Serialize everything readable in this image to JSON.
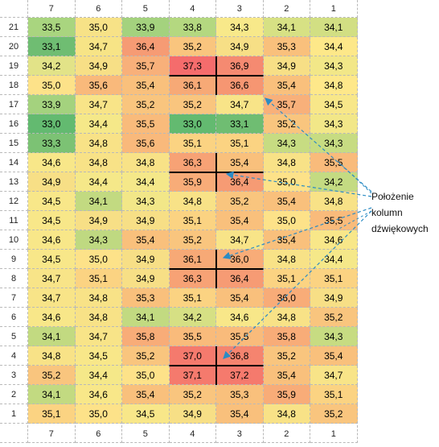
{
  "columns": [
    "7",
    "6",
    "5",
    "4",
    "3",
    "2",
    "1"
  ],
  "rows": [
    {
      "label": "21",
      "values": [
        "33,5",
        "35,0",
        "33,9",
        "33,8",
        "34,3",
        "34,1",
        "34,1"
      ],
      "colors": [
        "#a9d57f",
        "#f7e287",
        "#a4d27e",
        "#b4d880",
        "#f8e98a",
        "#d7e184",
        "#d2df83"
      ]
    },
    {
      "label": "20",
      "values": [
        "33,1",
        "34,7",
        "36,4",
        "35,2",
        "34,9",
        "35,3",
        "34,4"
      ],
      "colors": [
        "#6fbd72",
        "#f7e486",
        "#f69b74",
        "#f9c57e",
        "#f7df86",
        "#f9c07c",
        "#fde889"
      ]
    },
    {
      "label": "19",
      "values": [
        "34,2",
        "34,9",
        "35,7",
        "37,3",
        "36,9",
        "34,9",
        "34,3"
      ],
      "colors": [
        "#e2e388",
        "#f7df86",
        "#f8b07a",
        "#f56c6c",
        "#f58a71",
        "#f7df86",
        "#f2e788"
      ]
    },
    {
      "label": "18",
      "values": [
        "35,0",
        "35,6",
        "35,4",
        "36,1",
        "36,6",
        "35,4",
        "34,8"
      ],
      "colors": [
        "#fde289",
        "#f9b97b",
        "#f9c07c",
        "#f7a976",
        "#f69672",
        "#f9c07c",
        "#fee88a"
      ]
    },
    {
      "label": "17",
      "values": [
        "33,9",
        "34,7",
        "35,2",
        "35,2",
        "34,7",
        "35,7",
        "34,5"
      ],
      "colors": [
        "#a4d27e",
        "#f8e488",
        "#f9c57e",
        "#f9c57e",
        "#f8e488",
        "#f8b07a",
        "#f8e789"
      ]
    },
    {
      "label": "16",
      "values": [
        "33,0",
        "34,4",
        "35,5",
        "33,0",
        "33,1",
        "35,2",
        "34,3"
      ],
      "colors": [
        "#63ba70",
        "#f5e889",
        "#f9bb7b",
        "#63ba70",
        "#6fbd72",
        "#f9c57e",
        "#f2e788"
      ]
    },
    {
      "label": "15",
      "values": [
        "33,3",
        "34,8",
        "35,6",
        "35,1",
        "35,1",
        "34,3",
        "34,3"
      ],
      "colors": [
        "#7cc274",
        "#f8e287",
        "#f9b97b",
        "#fbd382",
        "#fbd382",
        "#c7dc82",
        "#c7dc82"
      ]
    },
    {
      "label": "14",
      "values": [
        "34,6",
        "34,8",
        "34,8",
        "36,3",
        "35,4",
        "34,8",
        "35,5"
      ],
      "colors": [
        "#f8e789",
        "#f8e287",
        "#f8e287",
        "#f7a275",
        "#f9c07c",
        "#f8e287",
        "#f9bb7b"
      ]
    },
    {
      "label": "13",
      "values": [
        "34,9",
        "34,4",
        "34,4",
        "35,9",
        "36,4",
        "35,0",
        "34,2"
      ],
      "colors": [
        "#f7df86",
        "#f5e889",
        "#f5e889",
        "#f8ac78",
        "#f69b74",
        "#fde289",
        "#c4db82"
      ]
    },
    {
      "label": "12",
      "values": [
        "34,5",
        "34,1",
        "34,3",
        "34,8",
        "35,2",
        "35,4",
        "34,8"
      ],
      "colors": [
        "#f8e789",
        "#c2da81",
        "#f2e788",
        "#f8e287",
        "#f9c57e",
        "#f9c07c",
        "#f8e287"
      ]
    },
    {
      "label": "11",
      "values": [
        "34,5",
        "34,9",
        "34,9",
        "35,1",
        "35,4",
        "35,0",
        "35,5"
      ],
      "colors": [
        "#f8e789",
        "#f7df86",
        "#f7df86",
        "#fbd382",
        "#f9c07c",
        "#fde289",
        "#f9bb7b"
      ]
    },
    {
      "label": "10",
      "values": [
        "34,6",
        "34,3",
        "35,4",
        "35,2",
        "34,7",
        "35,4",
        "34,6"
      ],
      "colors": [
        "#f8e789",
        "#bfd981",
        "#f9c07c",
        "#f9c57e",
        "#f8e488",
        "#f9c07c",
        "#f8e789"
      ]
    },
    {
      "label": "9",
      "values": [
        "34,5",
        "35,0",
        "34,9",
        "36,1",
        "36,0",
        "34,8",
        "34,4"
      ],
      "colors": [
        "#f8e789",
        "#fde289",
        "#f7df86",
        "#f7a976",
        "#f8ac78",
        "#f8e287",
        "#f5e889"
      ]
    },
    {
      "label": "8",
      "values": [
        "34,7",
        "35,1",
        "34,9",
        "36,3",
        "36,4",
        "35,1",
        "35,1"
      ],
      "colors": [
        "#f8e488",
        "#fbd382",
        "#f7df86",
        "#f7a275",
        "#f69b74",
        "#fbd382",
        "#fbd382"
      ]
    },
    {
      "label": "7",
      "values": [
        "34,7",
        "34,8",
        "35,3",
        "35,1",
        "35,4",
        "36,0",
        "34,9"
      ],
      "colors": [
        "#f8e488",
        "#f8e287",
        "#f9c07c",
        "#fbd382",
        "#f9c07c",
        "#f8ac78",
        "#f7df86"
      ]
    },
    {
      "label": "6",
      "values": [
        "34,6",
        "34,8",
        "34,1",
        "34,2",
        "34,6",
        "34,8",
        "35,2"
      ],
      "colors": [
        "#f8e789",
        "#f8e287",
        "#c2da81",
        "#d6e084",
        "#f8e789",
        "#f8e287",
        "#f9c57e"
      ]
    },
    {
      "label": "5",
      "values": [
        "34,1",
        "34,7",
        "35,8",
        "35,5",
        "35,5",
        "35,8",
        "34,3"
      ],
      "colors": [
        "#c2da81",
        "#f8e488",
        "#f8ac78",
        "#f9bb7b",
        "#f9bb7b",
        "#f8ac78",
        "#c7dc82"
      ]
    },
    {
      "label": "4",
      "values": [
        "34,8",
        "34,5",
        "35,2",
        "37,0",
        "36,8",
        "35,2",
        "35,4"
      ],
      "colors": [
        "#f8e287",
        "#f8e789",
        "#f9c57e",
        "#f57a6d",
        "#f5846f",
        "#f9c57e",
        "#f9c07c"
      ]
    },
    {
      "label": "3",
      "values": [
        "35,2",
        "34,4",
        "35,0",
        "37,1",
        "37,2",
        "35,4",
        "34,7"
      ],
      "colors": [
        "#f9c57e",
        "#f5e889",
        "#fde289",
        "#f57a6d",
        "#f57a6d",
        "#f9c07c",
        "#f8e488"
      ]
    },
    {
      "label": "2",
      "values": [
        "34,1",
        "34,6",
        "35,4",
        "35,2",
        "35,3",
        "35,9",
        "35,1"
      ],
      "colors": [
        "#c2da81",
        "#f8e789",
        "#f9c07c",
        "#f9c57e",
        "#f9c07c",
        "#f8ac78",
        "#fbd382"
      ]
    },
    {
      "label": "1",
      "values": [
        "35,1",
        "35,0",
        "34,5",
        "34,9",
        "35,4",
        "34,8",
        "35,2"
      ],
      "colors": [
        "#fbd382",
        "#fde289",
        "#f8e789",
        "#f7df86",
        "#f9c07c",
        "#f8e287",
        "#f9c57e"
      ]
    }
  ],
  "callout": {
    "line1": "Położenie",
    "line2": "kolumn",
    "line3": "dźwiękowych"
  },
  "accent_color": "#2b8cc4"
}
